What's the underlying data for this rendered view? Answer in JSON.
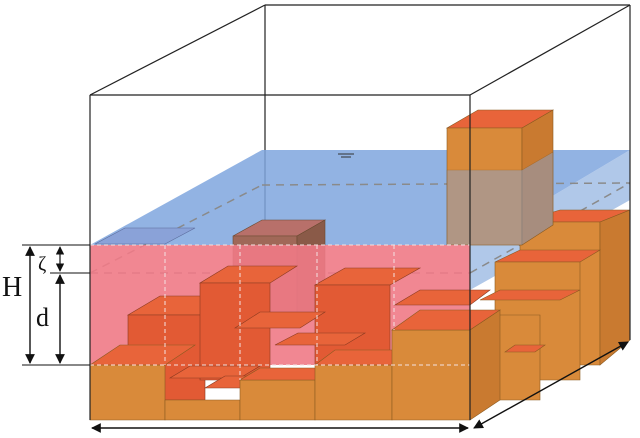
{
  "labels": {
    "H": "H",
    "d": "d",
    "zeta": "ζ"
  },
  "colors": {
    "water": "#7fa6de",
    "submerged": "#f07a86",
    "block_front": "#d98a3a",
    "block_top": "#e8643a",
    "block_side": "#c97a30",
    "frame": "#222222",
    "dashed": "#8a8a8a"
  }
}
